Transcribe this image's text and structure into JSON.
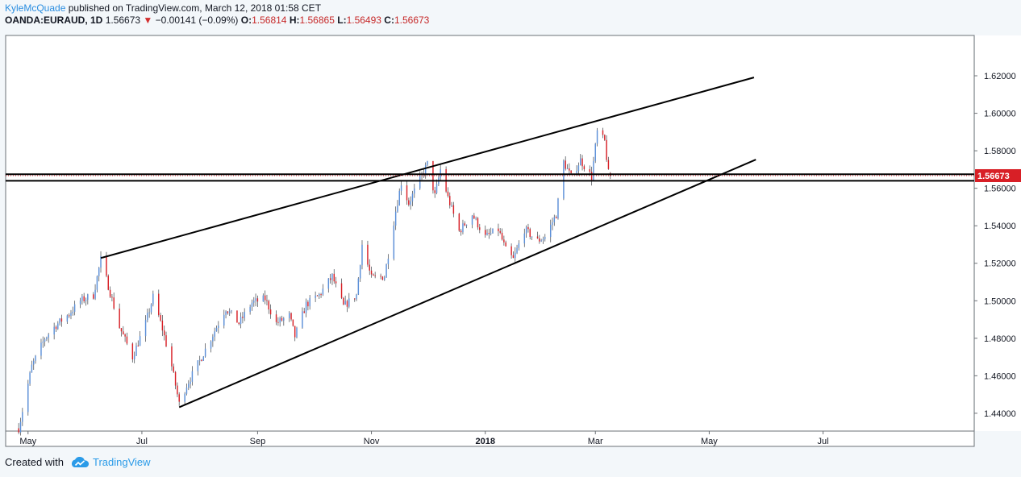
{
  "header": {
    "author": "KyleMcQuade",
    "published": "published on TradingView.com, March 12, 2018 01:58 CET",
    "symbol": "OANDA:EURAUD, 1D",
    "last": "1.56673",
    "change": "−0.00141 (−0.09%)",
    "o_label": "O:",
    "o_value": "1.56814",
    "h_label": "H:",
    "h_value": "1.56865",
    "l_label": "L:",
    "l_value": "1.56493",
    "c_label": "C:",
    "c_value": "1.56673"
  },
  "footer": {
    "created_with": "Created with",
    "brand": "TradingView"
  },
  "colors": {
    "up": "#5b8fd8",
    "down": "#d81f26",
    "price_label_bg": "#d81f26",
    "trendline": "#000000",
    "brand": "#2b9be8"
  },
  "chart_data": {
    "type": "candlestick",
    "symbol": "OANDA:EURAUD",
    "interval": "1D",
    "last_price": 1.56673,
    "last_price_label": "1.56673",
    "y_axis": {
      "ticks": [
        1.44,
        1.46,
        1.48,
        1.5,
        1.52,
        1.54,
        1.56,
        1.58,
        1.6,
        1.62
      ],
      "tick_labels": [
        "1.44000",
        "1.46000",
        "1.48000",
        "1.50000",
        "1.52000",
        "1.54000",
        "1.56000",
        "1.58000",
        "1.60000",
        "1.62000"
      ],
      "range": [
        1.4305,
        1.6415
      ]
    },
    "x_axis": {
      "range": [
        "2017-04-19",
        "2018-09-20"
      ],
      "labels": [
        {
          "date": "2017-05-01",
          "text": "May",
          "bold": false
        },
        {
          "date": "2017-07-01",
          "text": "Jul",
          "bold": false
        },
        {
          "date": "2017-09-01",
          "text": "Sep",
          "bold": false
        },
        {
          "date": "2017-11-01",
          "text": "Nov",
          "bold": false
        },
        {
          "date": "2018-01-01",
          "text": "2018",
          "bold": true
        },
        {
          "date": "2018-03-01",
          "text": "Mar",
          "bold": false
        },
        {
          "date": "2018-05-01",
          "text": "May",
          "bold": false
        },
        {
          "date": "2018-07-01",
          "text": "Jul",
          "bold": false
        }
      ]
    },
    "closes_path": [
      [
        "2017-04-26",
        1.432
      ],
      [
        "2017-05-03",
        1.465
      ],
      [
        "2017-05-10",
        1.48
      ],
      [
        "2017-05-16",
        1.487
      ],
      [
        "2017-05-23",
        1.493
      ],
      [
        "2017-05-29",
        1.5
      ],
      [
        "2017-06-05",
        1.503
      ],
      [
        "2017-06-09",
        1.522
      ],
      [
        "2017-06-13",
        1.508
      ],
      [
        "2017-06-19",
        1.486
      ],
      [
        "2017-06-26",
        1.47
      ],
      [
        "2017-07-03",
        1.488
      ],
      [
        "2017-07-07",
        1.502
      ],
      [
        "2017-07-12",
        1.485
      ],
      [
        "2017-07-17",
        1.465
      ],
      [
        "2017-07-21",
        1.445
      ],
      [
        "2017-07-25",
        1.455
      ],
      [
        "2017-08-01",
        1.468
      ],
      [
        "2017-08-08",
        1.482
      ],
      [
        "2017-08-15",
        1.496
      ],
      [
        "2017-08-22",
        1.488
      ],
      [
        "2017-08-29",
        1.499
      ],
      [
        "2017-09-05",
        1.501
      ],
      [
        "2017-09-11",
        1.488
      ],
      [
        "2017-09-18",
        1.492
      ],
      [
        "2017-09-21",
        1.481
      ],
      [
        "2017-09-27",
        1.498
      ],
      [
        "2017-10-04",
        1.503
      ],
      [
        "2017-10-11",
        1.513
      ],
      [
        "2017-10-17",
        1.497
      ],
      [
        "2017-10-24",
        1.503
      ],
      [
        "2017-10-27",
        1.53
      ],
      [
        "2017-11-01",
        1.512
      ],
      [
        "2017-11-08",
        1.513
      ],
      [
        "2017-11-14",
        1.548
      ],
      [
        "2017-11-17",
        1.563
      ],
      [
        "2017-11-21",
        1.552
      ],
      [
        "2017-11-27",
        1.565
      ],
      [
        "2017-12-01",
        1.573
      ],
      [
        "2017-12-05",
        1.556
      ],
      [
        "2017-12-08",
        1.57
      ],
      [
        "2017-12-12",
        1.555
      ],
      [
        "2017-12-18",
        1.537
      ],
      [
        "2017-12-25",
        1.546
      ],
      [
        "2018-01-01",
        1.534
      ],
      [
        "2018-01-08",
        1.538
      ],
      [
        "2018-01-12",
        1.527
      ],
      [
        "2018-01-16",
        1.522
      ],
      [
        "2018-01-22",
        1.538
      ],
      [
        "2018-01-29",
        1.532
      ],
      [
        "2018-02-02",
        1.534
      ],
      [
        "2018-02-08",
        1.546
      ],
      [
        "2018-02-12",
        1.574
      ],
      [
        "2018-02-16",
        1.566
      ],
      [
        "2018-02-21",
        1.575
      ],
      [
        "2018-02-27",
        1.566
      ],
      [
        "2018-03-02",
        1.59
      ],
      [
        "2018-03-06",
        1.585
      ],
      [
        "2018-03-08",
        1.568
      ],
      [
        "2018-03-09",
        1.56673
      ]
    ],
    "trendlines": [
      {
        "name": "upper-channel",
        "from": [
          "2017-06-09",
          1.5228
        ],
        "to": [
          "2018-05-25",
          1.6191
        ]
      },
      {
        "name": "lower-channel",
        "from": [
          "2017-07-21",
          1.4432
        ],
        "to": [
          "2018-05-26",
          1.5753
        ]
      },
      {
        "name": "resistance-line-1",
        "y": 1.5675
      },
      {
        "name": "resistance-line-2",
        "y": 1.564
      }
    ]
  }
}
